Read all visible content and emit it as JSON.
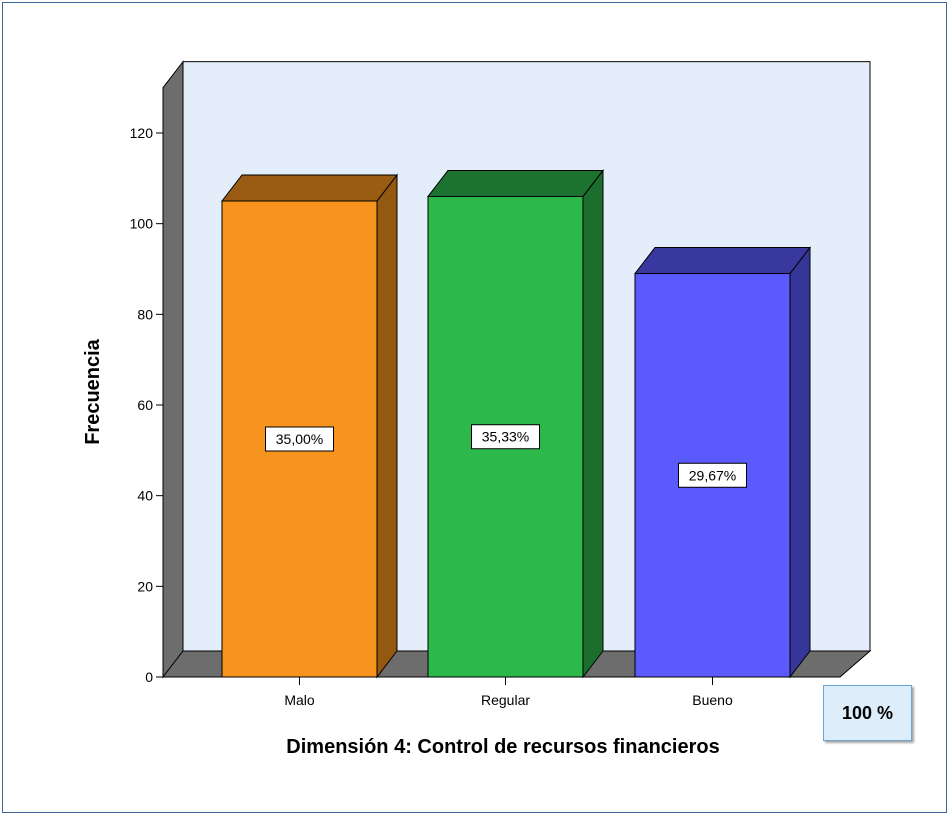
{
  "chart_data": {
    "type": "bar",
    "title": "",
    "xlabel": "Dimensión 4: Control de recursos financieros",
    "ylabel": "Frecuencia",
    "categories": [
      "Malo",
      "Regular",
      "Bueno"
    ],
    "values": [
      105,
      106,
      89
    ],
    "data_labels": [
      "35,00%",
      "35,33%",
      "29,67%"
    ],
    "colors": [
      "#f7941d",
      "#2db84b",
      "#5a5aff"
    ],
    "ylim": [
      0,
      120
    ],
    "yticks": [
      0,
      20,
      40,
      60,
      80,
      100,
      120
    ],
    "grid": false,
    "legend": "none",
    "style": "3d-bar"
  },
  "total_badge": "100 %"
}
